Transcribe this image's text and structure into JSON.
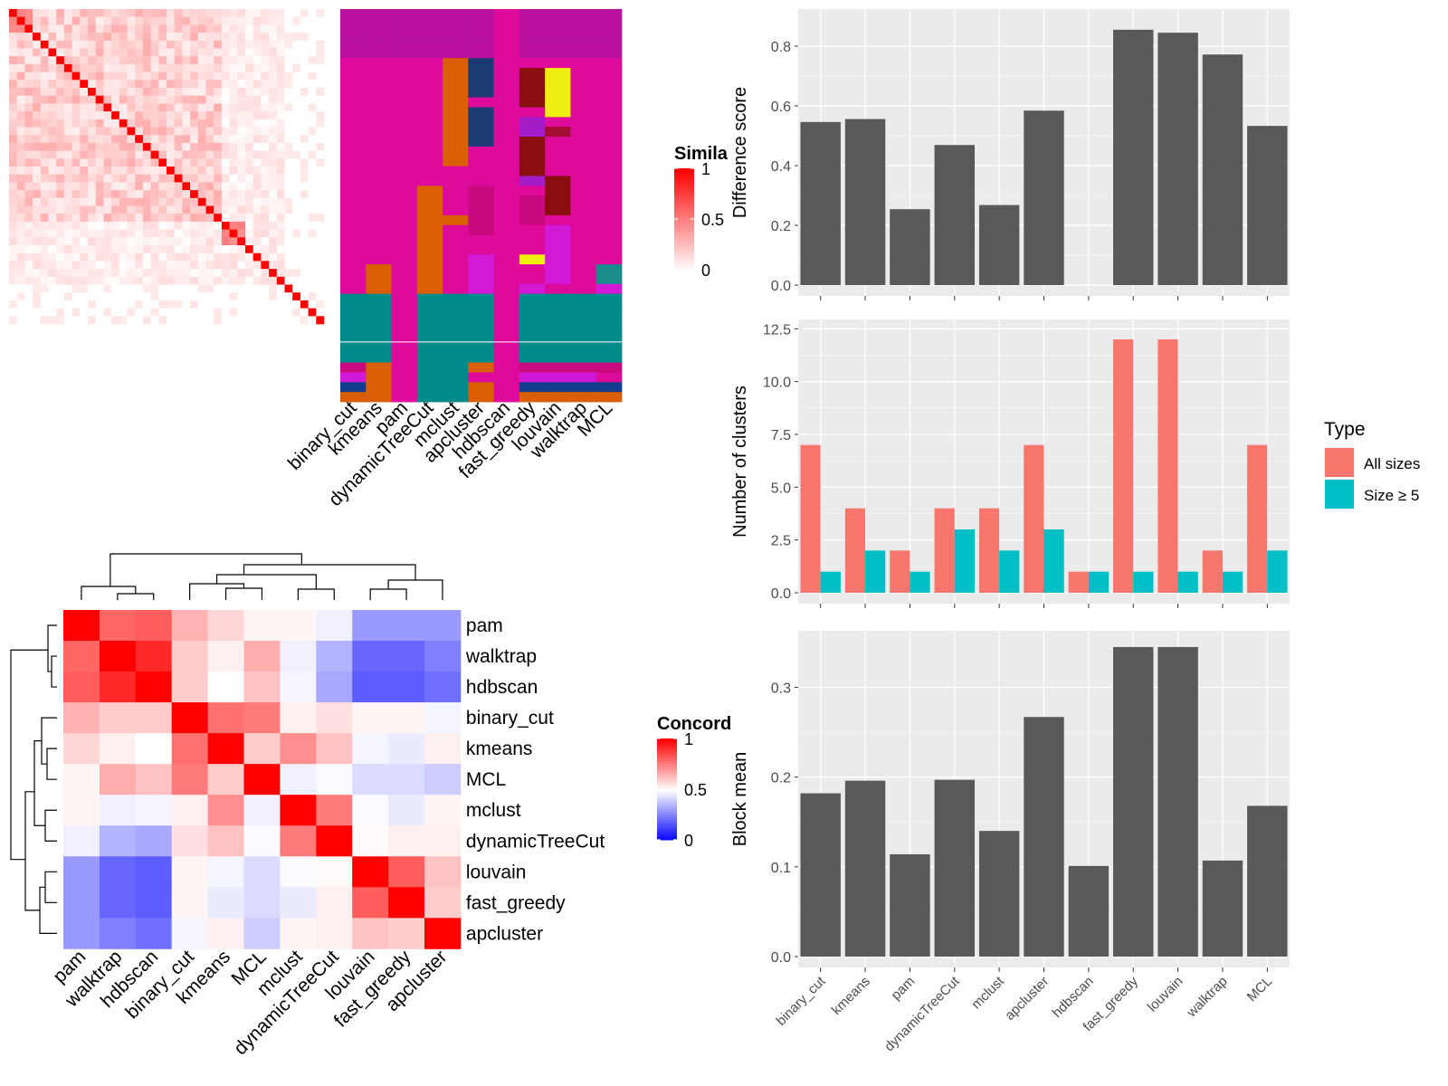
{
  "methods": [
    "binary_cut",
    "kmeans",
    "pam",
    "dynamicTreeCut",
    "mclust",
    "apcluster",
    "hdbscan",
    "fast_greedy",
    "louvain",
    "walktrap",
    "MCL"
  ],
  "colors": {
    "cluster_palette": [
      "#B9119E",
      "#DE0A9C",
      "#D95F02",
      "#1B3B73",
      "#8B0E0E",
      "#EEEE11",
      "#A41BC8",
      "#008B8B",
      "#C9097E",
      "#D21AD6",
      "#123D8F",
      "#A30D32",
      "#1A8C8C"
    ],
    "all_sizes": "#F8766D",
    "size_ge5": "#00BFC4",
    "bar_gray": "#595959",
    "panel_bg": "#EBEBEB"
  },
  "similarity_heatmap": {
    "legend_title": "Simila",
    "legend_ticks": [
      "1",
      "0.5",
      "0"
    ],
    "column_labels": [
      "binary_cut",
      "kmeans",
      "pam",
      "dynamicTreeCut",
      "mclust",
      "apcluster",
      "hdbscan",
      "fast_greedy",
      "louvain",
      "walktrap",
      "MCL"
    ]
  },
  "concordance_heatmap": {
    "legend_title": "Concord",
    "legend_ticks": [
      "1",
      "0.5",
      "0"
    ],
    "order": [
      "pam",
      "walktrap",
      "hdbscan",
      "binary_cut",
      "kmeans",
      "MCL",
      "mclust",
      "dynamicTreeCut",
      "louvain",
      "fast_greedy",
      "apcluster"
    ],
    "values": [
      [
        1.0,
        0.8,
        0.82,
        0.65,
        0.58,
        0.52,
        0.52,
        0.47,
        0.3,
        0.3,
        0.3
      ],
      [
        0.8,
        1.0,
        0.92,
        0.6,
        0.53,
        0.66,
        0.47,
        0.35,
        0.2,
        0.2,
        0.25
      ],
      [
        0.82,
        0.92,
        1.0,
        0.6,
        0.5,
        0.62,
        0.48,
        0.33,
        0.18,
        0.18,
        0.22
      ],
      [
        0.65,
        0.6,
        0.6,
        1.0,
        0.78,
        0.76,
        0.53,
        0.56,
        0.52,
        0.52,
        0.48
      ],
      [
        0.58,
        0.53,
        0.5,
        0.78,
        1.0,
        0.6,
        0.72,
        0.62,
        0.48,
        0.46,
        0.53
      ],
      [
        0.52,
        0.66,
        0.62,
        0.76,
        0.6,
        1.0,
        0.47,
        0.49,
        0.43,
        0.43,
        0.4
      ],
      [
        0.52,
        0.47,
        0.48,
        0.53,
        0.72,
        0.47,
        1.0,
        0.76,
        0.49,
        0.46,
        0.52
      ],
      [
        0.47,
        0.35,
        0.33,
        0.56,
        0.62,
        0.49,
        0.76,
        1.0,
        0.51,
        0.53,
        0.53
      ],
      [
        0.3,
        0.2,
        0.18,
        0.52,
        0.48,
        0.43,
        0.49,
        0.51,
        1.0,
        0.82,
        0.62
      ],
      [
        0.3,
        0.2,
        0.18,
        0.52,
        0.46,
        0.43,
        0.46,
        0.53,
        0.82,
        1.0,
        0.6
      ],
      [
        0.3,
        0.25,
        0.22,
        0.48,
        0.53,
        0.4,
        0.52,
        0.53,
        0.62,
        0.6,
        1.0
      ]
    ]
  },
  "chart_data": [
    {
      "type": "bar",
      "ylabel": "Difference score",
      "categories": [
        "binary_cut",
        "kmeans",
        "pam",
        "dynamicTreeCut",
        "mclust",
        "apcluster",
        "hdbscan",
        "fast_greedy",
        "louvain",
        "walktrap",
        "MCL"
      ],
      "values": [
        0.546,
        0.556,
        0.254,
        0.469,
        0.268,
        0.584,
        0,
        0.855,
        0.845,
        0.772,
        0.533
      ],
      "ylim": [
        0,
        0.9
      ],
      "yticks": [
        "0.0",
        "0.2",
        "0.4",
        "0.6",
        "0.8"
      ]
    },
    {
      "type": "bar",
      "ylabel": "Number of clusters",
      "categories": [
        "binary_cut",
        "kmeans",
        "pam",
        "dynamicTreeCut",
        "mclust",
        "apcluster",
        "hdbscan",
        "fast_greedy",
        "louvain",
        "walktrap",
        "MCL"
      ],
      "series": [
        {
          "name": "All sizes",
          "values": [
            7,
            4,
            2,
            4,
            4,
            7,
            1,
            12,
            12,
            2,
            7
          ]
        },
        {
          "name": "Size ≥ 5",
          "values": [
            1,
            2,
            1,
            3,
            2,
            3,
            1,
            1,
            1,
            1,
            2
          ]
        }
      ],
      "ylim": [
        0,
        12.6
      ],
      "yticks": [
        "0.0",
        "2.5",
        "5.0",
        "7.5",
        "10.0",
        "12.5"
      ],
      "legend_title": "Type",
      "legend_position": "right"
    },
    {
      "type": "bar",
      "ylabel": "Block mean",
      "categories": [
        "binary_cut",
        "kmeans",
        "pam",
        "dynamicTreeCut",
        "mclust",
        "apcluster",
        "hdbscan",
        "fast_greedy",
        "louvain",
        "walktrap",
        "MCL"
      ],
      "values": [
        0.182,
        0.196,
        0.114,
        0.197,
        0.14,
        0.267,
        0.101,
        0.345,
        0.345,
        0.107,
        0.168
      ],
      "ylim": [
        0,
        0.355
      ],
      "yticks": [
        "0.0",
        "0.1",
        "0.2",
        "0.3"
      ]
    }
  ]
}
